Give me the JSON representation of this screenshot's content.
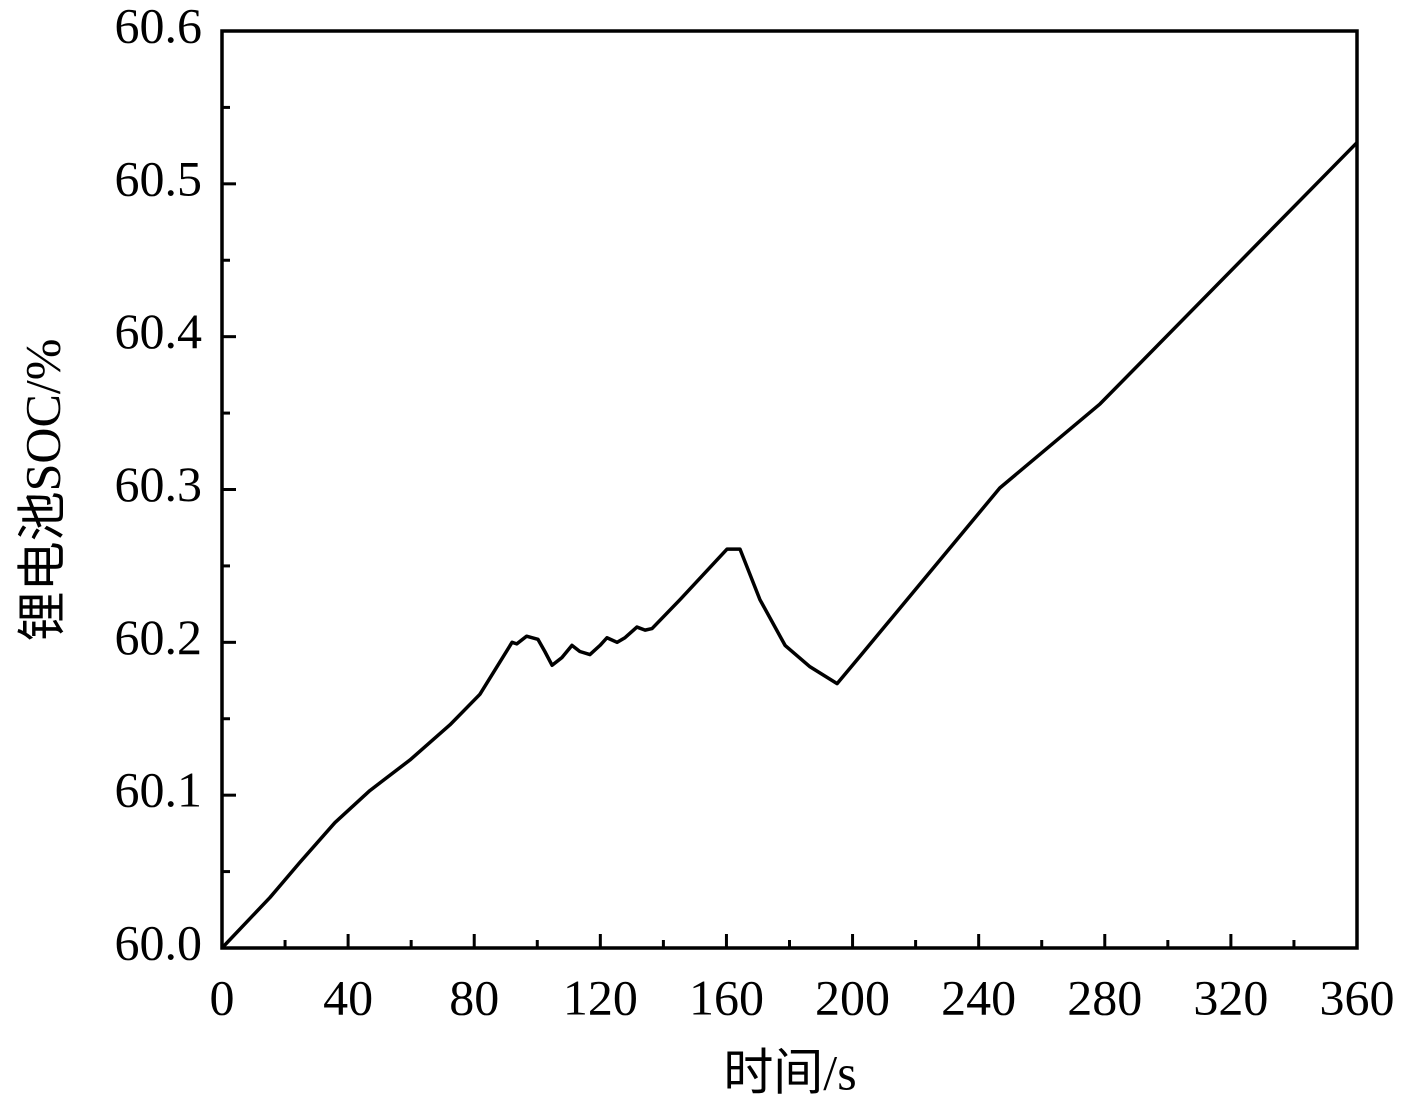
{
  "chart_data": {
    "type": "line",
    "x_label": "时间/s",
    "y_label": "锂电池SOC/%",
    "x": [
      0,
      15.2,
      24.7,
      35.8,
      46.9,
      59.6,
      72.3,
      81.8,
      92.0,
      93.5,
      96.6,
      100.2,
      102.4,
      104.7,
      107.8,
      111.0,
      113.5,
      116.7,
      119.9,
      122.1,
      125.3,
      127.8,
      131.6,
      134.2,
      136.4,
      145.3,
      160.2,
      164.3,
      170.6,
      178.6,
      186.5,
      195.1,
      202.4,
      246.7,
      278.5,
      360
    ],
    "series": [
      {
        "color": "#000000",
        "values": [
          60.0,
          60.033,
          60.056,
          60.082,
          60.103,
          60.123,
          60.146,
          60.166,
          60.2,
          60.199,
          60.204,
          60.202,
          60.194,
          60.185,
          60.19,
          60.198,
          60.194,
          60.192,
          60.198,
          60.203,
          60.2,
          60.203,
          60.21,
          60.208,
          60.209,
          60.228,
          60.261,
          60.261,
          60.228,
          60.198,
          60.184,
          60.173,
          60.191,
          60.301,
          60.356,
          60.527
        ]
      }
    ],
    "xlim": [
      0,
      360
    ],
    "xticks": [
      0,
      40,
      80,
      120,
      160,
      200,
      240,
      280,
      320,
      360
    ],
    "ylim": [
      60.0,
      60.6
    ],
    "yticks": [
      {
        "value": 60.0,
        "label": "60.0"
      },
      60.1,
      60.2,
      60.3,
      60.4,
      60.5,
      60.6
    ],
    "grid": false
  }
}
